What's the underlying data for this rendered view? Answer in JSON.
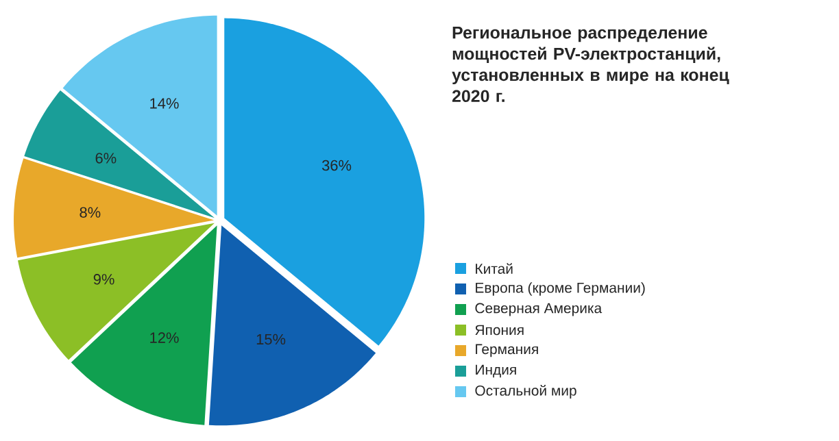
{
  "chart_data": {
    "type": "pie",
    "title": "Региональное распределение мощностей PV-электростанций, установленных в мире на конец 2020 г.",
    "categories": [
      "Китай",
      "Европа (кроме Германии)",
      "Северная Америка",
      "Япония",
      "Германия",
      "Индия",
      "Остальной мир"
    ],
    "values": [
      36,
      15,
      12,
      9,
      8,
      6,
      14
    ],
    "value_labels": [
      "36%",
      "15%",
      "12%",
      "9%",
      "8%",
      "6%",
      "14%"
    ],
    "colors": [
      "#1aa0e0",
      "#1060b0",
      "#10a050",
      "#8cbf26",
      "#e8a82a",
      "#1a9e98",
      "#66c8f0"
    ],
    "legend": "right"
  }
}
